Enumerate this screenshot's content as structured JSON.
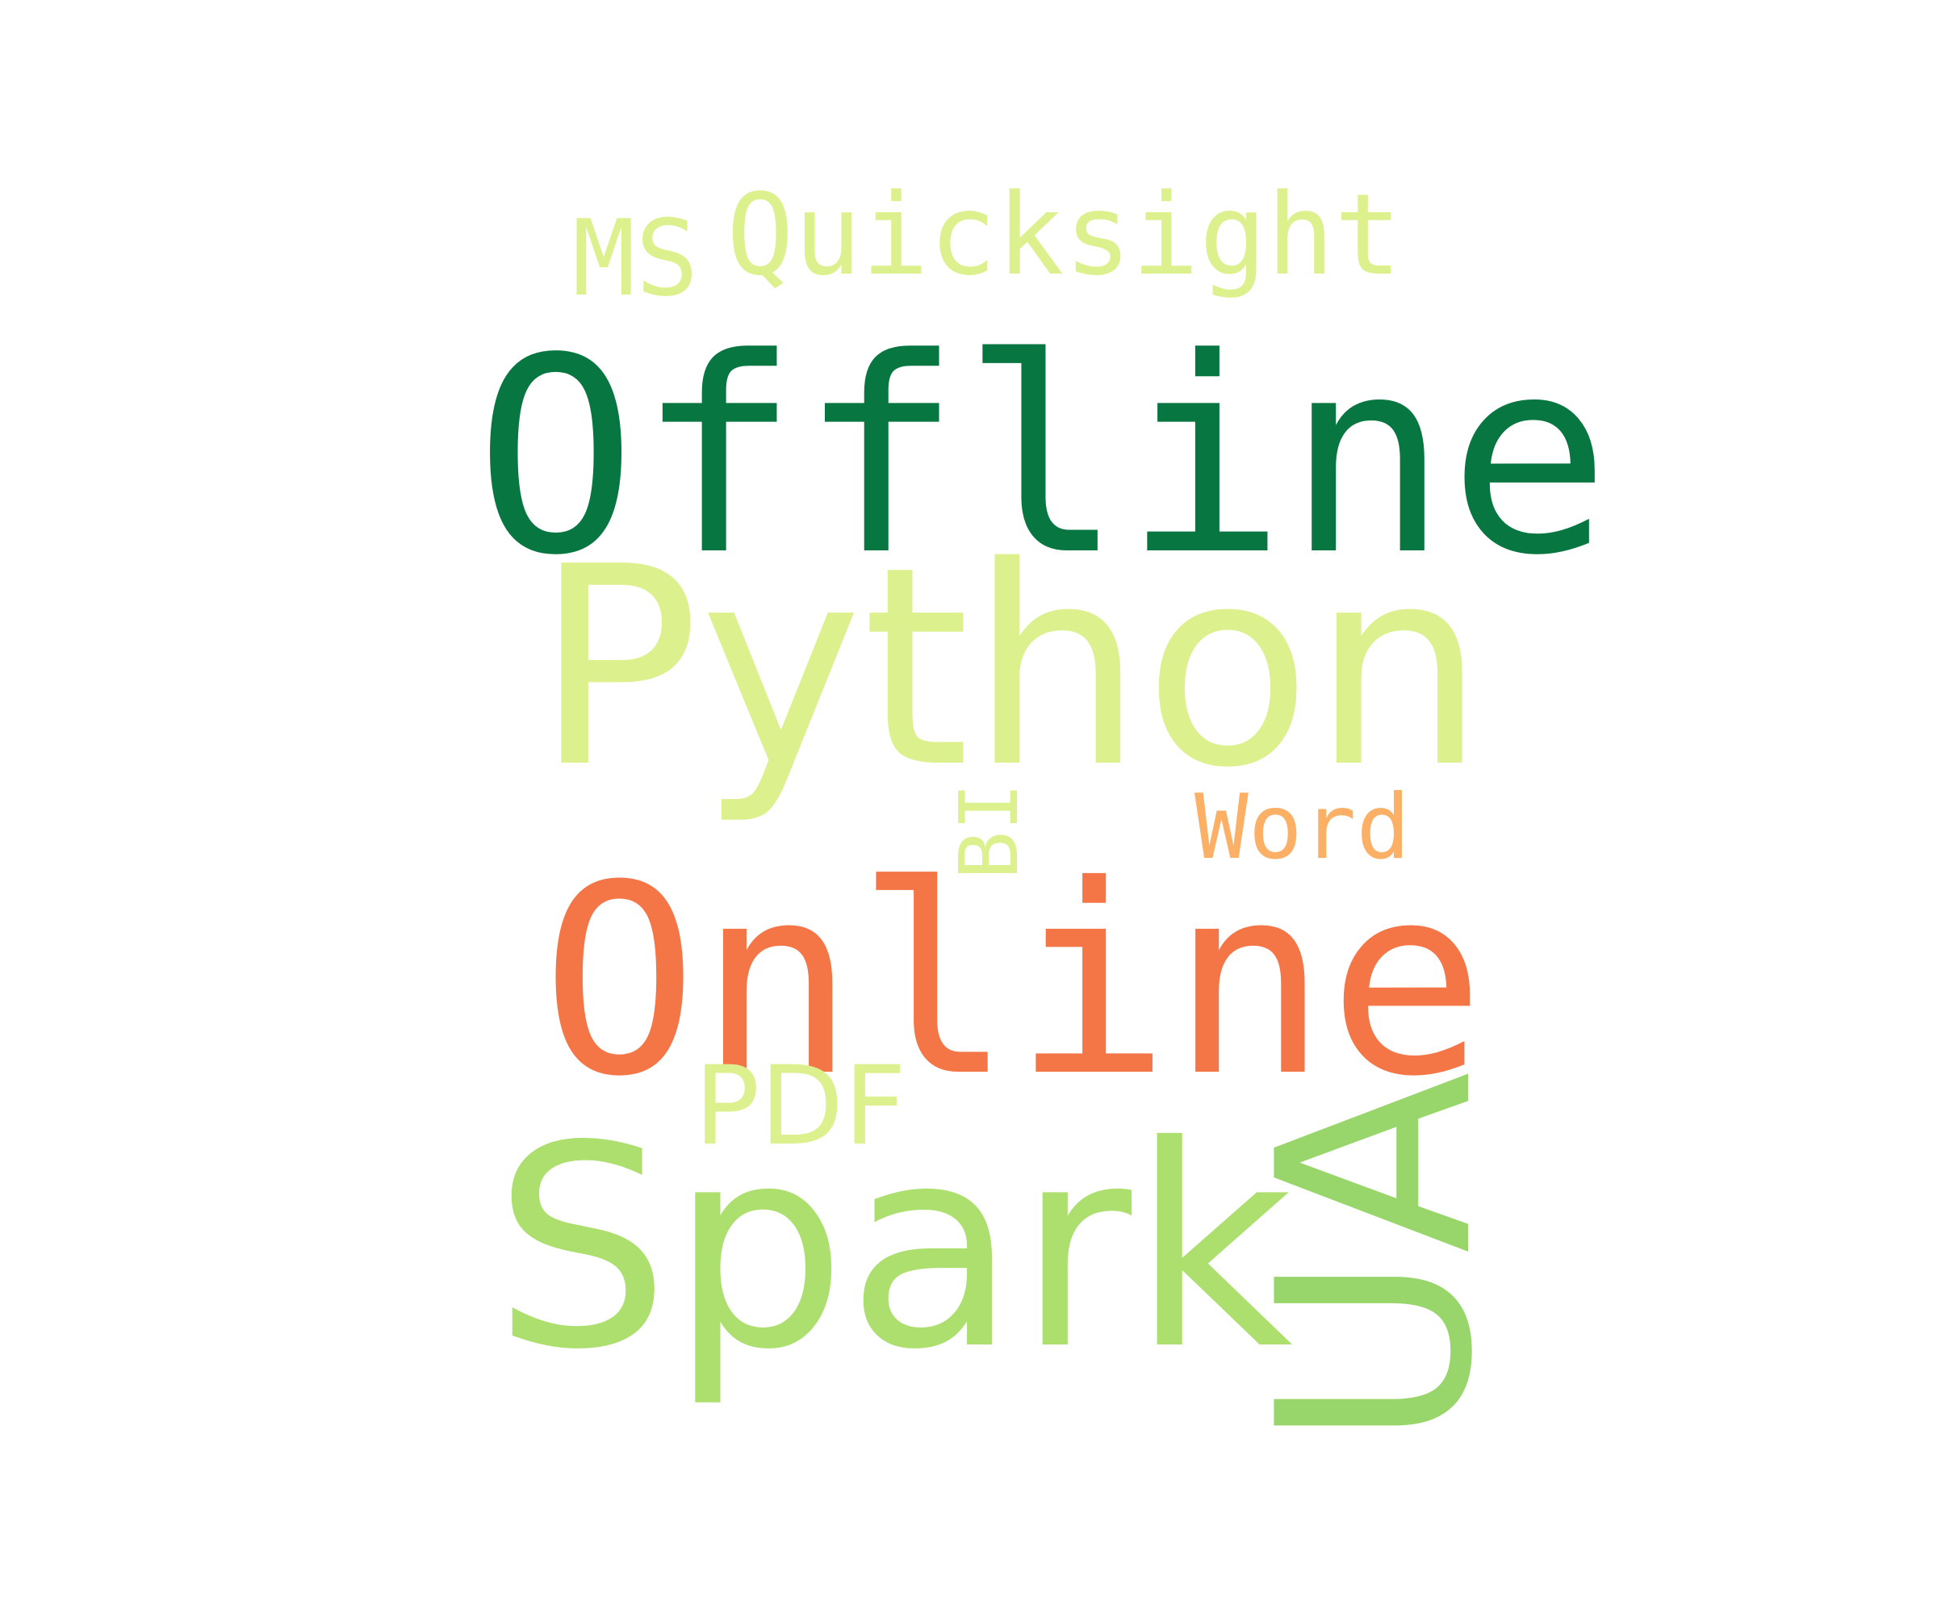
{
  "words": {
    "offline": {
      "text": "Offline",
      "color": "#087640"
    },
    "python": {
      "text": "Python",
      "color": "#dcf08e"
    },
    "online": {
      "text": "Online",
      "color": "#f47647"
    },
    "spark": {
      "text": "Spark",
      "color": "#addf6e"
    },
    "ua": {
      "text": "UA",
      "color": "#98d56a"
    },
    "ms": {
      "text": "MS",
      "color": "#dcf08e"
    },
    "quicksight": {
      "text": "Quicksight",
      "color": "#dcf08e"
    },
    "word": {
      "text": "Word",
      "color": "#fbb066"
    },
    "pdf": {
      "text": "PDF",
      "color": "#dcf08e"
    },
    "bi": {
      "text": "BI",
      "color": "#dcf08e"
    }
  }
}
